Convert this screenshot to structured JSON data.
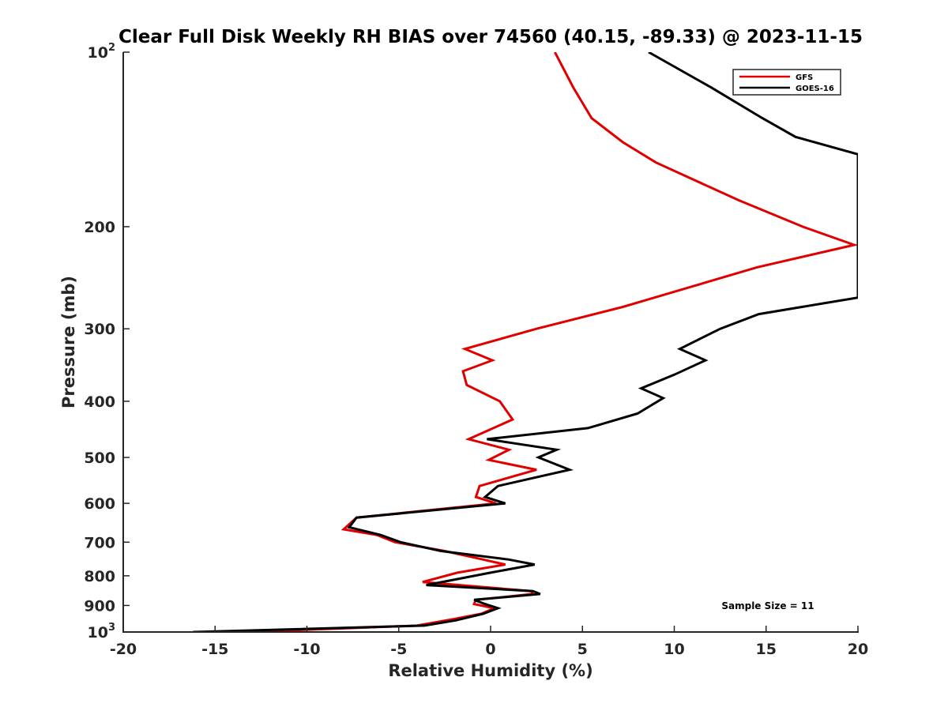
{
  "chart_data": {
    "type": "line",
    "title": "Clear Full Disk Weekly RH BIAS over 74560 (40.15, -89.33) @ 2023-11-15",
    "xlabel": "Relative Humidity (%)",
    "ylabel": "Pressure (mb)",
    "xlim": [
      -20,
      20
    ],
    "ylim": [
      100,
      1000
    ],
    "y_scale": "log",
    "y_reversed": true,
    "grid": false,
    "legend_position": "top-right",
    "x_ticks": [
      -20,
      -15,
      -10,
      -5,
      0,
      5,
      10,
      15,
      20
    ],
    "x_tick_labels": [
      "-20",
      "-15",
      "-10",
      "-5",
      "0",
      "5",
      "10",
      "15",
      "20"
    ],
    "y_ticks": [
      {
        "value": 100,
        "base": "10",
        "exp": "2"
      },
      {
        "value": 200,
        "label": "200"
      },
      {
        "value": 300,
        "label": "300"
      },
      {
        "value": 400,
        "label": "400"
      },
      {
        "value": 500,
        "label": "500"
      },
      {
        "value": 600,
        "label": "600"
      },
      {
        "value": 700,
        "label": "700"
      },
      {
        "value": 800,
        "label": "800"
      },
      {
        "value": 900,
        "label": "900"
      },
      {
        "value": 1000,
        "base": "10",
        "exp": "3"
      }
    ],
    "annotation": "Sample Size = 11",
    "series": [
      {
        "name": "GFS",
        "color": "#e00000",
        "points": [
          [
            3.5,
            100
          ],
          [
            4.5,
            115
          ],
          [
            5.5,
            130
          ],
          [
            7.2,
            143
          ],
          [
            9,
            155
          ],
          [
            13.5,
            180
          ],
          [
            17,
            200
          ],
          [
            19.8,
            215
          ],
          [
            14.5,
            235
          ],
          [
            7.2,
            275
          ],
          [
            2.5,
            300
          ],
          [
            -1.4,
            325
          ],
          [
            0.1,
            340
          ],
          [
            -1.5,
            355
          ],
          [
            -1.3,
            375
          ],
          [
            0.5,
            400
          ],
          [
            1.2,
            430
          ],
          [
            -1.2,
            465
          ],
          [
            1.0,
            485
          ],
          [
            -0.1,
            505
          ],
          [
            2.5,
            525
          ],
          [
            -0.6,
            560
          ],
          [
            -0.8,
            585
          ],
          [
            0.3,
            600
          ],
          [
            -7.3,
            635
          ],
          [
            -8.0,
            665
          ],
          [
            -6.2,
            680
          ],
          [
            -5.2,
            700
          ],
          [
            -2.5,
            725
          ],
          [
            -0.4,
            750
          ],
          [
            0.8,
            765
          ],
          [
            -1.8,
            790
          ],
          [
            -3.7,
            820
          ],
          [
            2.2,
            850
          ],
          [
            2.3,
            860
          ],
          [
            -0.8,
            880
          ],
          [
            -0.9,
            895
          ],
          [
            0.2,
            910
          ],
          [
            -0.5,
            930
          ],
          [
            -2.0,
            950
          ],
          [
            -4.0,
            975
          ],
          [
            -13.3,
            1000
          ]
        ]
      },
      {
        "name": "GOES-16",
        "color": "#000000",
        "points": [
          [
            8.6,
            100
          ],
          [
            12,
            115
          ],
          [
            14.8,
            130
          ],
          [
            16.6,
            140
          ],
          [
            20,
            150
          ],
          [
            20,
            265
          ],
          [
            14.6,
            283
          ],
          [
            12.5,
            300
          ],
          [
            10.3,
            325
          ],
          [
            11.7,
            340
          ],
          [
            10.0,
            360
          ],
          [
            8.2,
            380
          ],
          [
            9.4,
            395
          ],
          [
            8.0,
            420
          ],
          [
            5.3,
            445
          ],
          [
            -0.2,
            465
          ],
          [
            3.6,
            485
          ],
          [
            2.6,
            500
          ],
          [
            4.3,
            525
          ],
          [
            0.4,
            560
          ],
          [
            -0.3,
            585
          ],
          [
            0.8,
            600
          ],
          [
            -7.3,
            635
          ],
          [
            -7.7,
            660
          ],
          [
            -6.0,
            680
          ],
          [
            -4.9,
            700
          ],
          [
            -2.7,
            725
          ],
          [
            1.0,
            750
          ],
          [
            2.4,
            765
          ],
          [
            0.0,
            790
          ],
          [
            -3.5,
            830
          ],
          [
            2.3,
            850
          ],
          [
            2.7,
            860
          ],
          [
            -0.9,
            880
          ],
          [
            -0.3,
            895
          ],
          [
            0.4,
            910
          ],
          [
            -0.4,
            930
          ],
          [
            -1.9,
            955
          ],
          [
            -3.6,
            975
          ],
          [
            -16.2,
            1000
          ]
        ]
      }
    ]
  }
}
